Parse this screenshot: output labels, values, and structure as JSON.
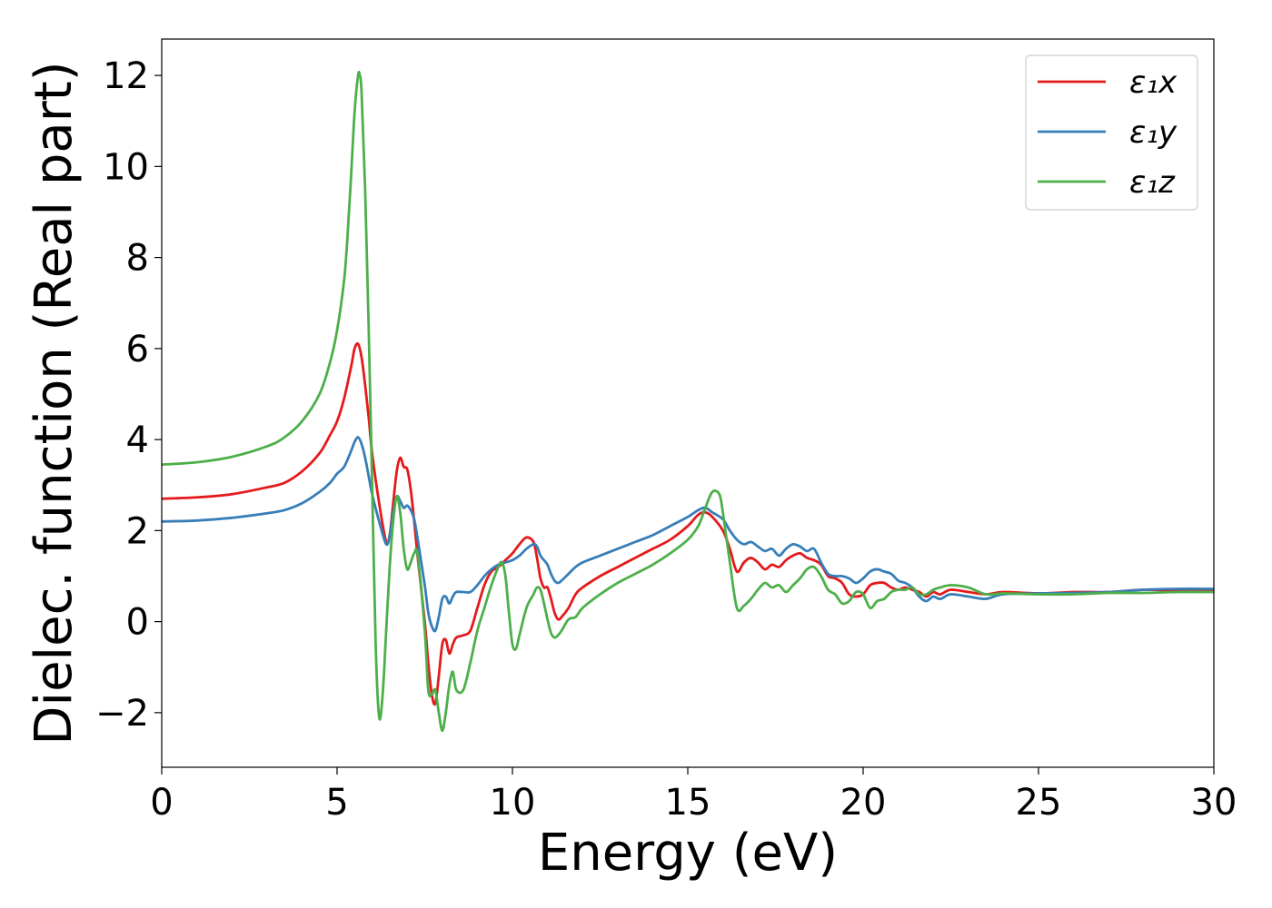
{
  "chart_data": {
    "type": "line",
    "title": "",
    "xlabel": "Energy (eV)",
    "ylabel": "Dielec. function (Real part)",
    "xlim": [
      0,
      30
    ],
    "ylim": [
      -3.2,
      12.8
    ],
    "xticks": [
      0,
      5,
      10,
      15,
      20,
      25,
      30
    ],
    "xtick_labels": [
      "0",
      "5",
      "10",
      "15",
      "20",
      "25",
      "30"
    ],
    "yticks": [
      -2,
      0,
      2,
      4,
      6,
      8,
      10,
      12
    ],
    "ytick_labels": [
      "−2",
      "0",
      "2",
      "4",
      "6",
      "8",
      "10",
      "12"
    ],
    "grid": false,
    "legend_position": "top-right",
    "series": [
      {
        "name": "ε₁x",
        "color": "#e41a1c",
        "x": [
          0,
          1,
          2,
          3,
          3.5,
          4,
          4.5,
          4.8,
          5.0,
          5.2,
          5.4,
          5.5,
          5.6,
          5.7,
          5.8,
          5.9,
          6.0,
          6.2,
          6.4,
          6.5,
          6.6,
          6.7,
          6.8,
          6.9,
          7.0,
          7.1,
          7.2,
          7.3,
          7.5,
          7.6,
          7.7,
          7.8,
          7.9,
          8.0,
          8.1,
          8.2,
          8.3,
          8.4,
          8.6,
          8.8,
          9.0,
          9.2,
          9.4,
          9.6,
          9.8,
          10.0,
          10.2,
          10.4,
          10.6,
          10.7,
          10.8,
          10.9,
          11.0,
          11.1,
          11.2,
          11.3,
          11.4,
          11.6,
          11.8,
          12.0,
          12.5,
          13.0,
          13.5,
          14.0,
          14.5,
          15.0,
          15.3,
          15.5,
          15.7,
          16.0,
          16.2,
          16.4,
          16.6,
          16.8,
          17.0,
          17.2,
          17.4,
          17.6,
          17.8,
          18.0,
          18.2,
          18.4,
          18.6,
          18.8,
          19.0,
          19.2,
          19.4,
          19.6,
          19.8,
          20.0,
          20.2,
          20.4,
          20.6,
          20.8,
          21.0,
          21.2,
          21.4,
          21.6,
          21.8,
          22.0,
          22.2,
          22.5,
          23.0,
          23.5,
          24.0,
          25.0,
          26.0,
          27.0,
          28.0,
          29.0,
          30.0
        ],
        "y": [
          2.7,
          2.73,
          2.8,
          2.95,
          3.05,
          3.3,
          3.7,
          4.1,
          4.4,
          4.9,
          5.6,
          6.0,
          6.1,
          5.8,
          5.2,
          4.5,
          3.7,
          2.6,
          1.75,
          1.9,
          2.6,
          3.3,
          3.6,
          3.4,
          3.35,
          2.9,
          2.2,
          1.4,
          0.0,
          -0.9,
          -1.6,
          -1.8,
          -1.2,
          -0.5,
          -0.4,
          -0.7,
          -0.5,
          -0.35,
          -0.3,
          -0.2,
          0.3,
          0.8,
          1.1,
          1.2,
          1.35,
          1.5,
          1.7,
          1.85,
          1.75,
          1.4,
          0.95,
          0.75,
          0.75,
          0.5,
          0.2,
          0.05,
          0.1,
          0.3,
          0.6,
          0.75,
          1.0,
          1.2,
          1.4,
          1.6,
          1.8,
          2.1,
          2.35,
          2.4,
          2.3,
          2.0,
          1.6,
          1.1,
          1.3,
          1.4,
          1.3,
          1.15,
          1.25,
          1.2,
          1.35,
          1.45,
          1.5,
          1.4,
          1.35,
          1.25,
          1.0,
          0.95,
          0.85,
          0.6,
          0.55,
          0.6,
          0.8,
          0.85,
          0.85,
          0.75,
          0.7,
          0.75,
          0.7,
          0.65,
          0.55,
          0.65,
          0.6,
          0.7,
          0.65,
          0.6,
          0.65,
          0.62,
          0.65,
          0.65,
          0.7,
          0.68,
          0.7
        ]
      },
      {
        "name": "ε₁y",
        "color": "#377eb8",
        "x": [
          0,
          1,
          2,
          3,
          3.5,
          4,
          4.5,
          4.8,
          5.0,
          5.2,
          5.4,
          5.5,
          5.6,
          5.7,
          5.8,
          5.9,
          6.0,
          6.2,
          6.4,
          6.5,
          6.6,
          6.7,
          6.8,
          6.9,
          7.0,
          7.1,
          7.2,
          7.3,
          7.5,
          7.6,
          7.7,
          7.8,
          7.9,
          8.0,
          8.1,
          8.2,
          8.3,
          8.4,
          8.6,
          8.8,
          9.0,
          9.2,
          9.4,
          9.6,
          9.8,
          10.0,
          10.2,
          10.4,
          10.6,
          10.7,
          10.8,
          10.9,
          11.0,
          11.1,
          11.2,
          11.3,
          11.4,
          11.6,
          11.8,
          12.0,
          12.5,
          13.0,
          13.5,
          14.0,
          14.5,
          15.0,
          15.3,
          15.5,
          15.7,
          16.0,
          16.2,
          16.4,
          16.6,
          16.8,
          17.0,
          17.2,
          17.4,
          17.6,
          17.8,
          18.0,
          18.2,
          18.4,
          18.6,
          18.8,
          19.0,
          19.2,
          19.4,
          19.6,
          19.8,
          20.0,
          20.2,
          20.4,
          20.6,
          20.8,
          21.0,
          21.2,
          21.4,
          21.6,
          21.8,
          22.0,
          22.2,
          22.5,
          23.0,
          23.5,
          24.0,
          25.0,
          26.0,
          27.0,
          28.0,
          29.0,
          30.0
        ],
        "y": [
          2.2,
          2.22,
          2.28,
          2.38,
          2.45,
          2.6,
          2.85,
          3.05,
          3.25,
          3.4,
          3.75,
          3.95,
          4.05,
          3.9,
          3.6,
          3.2,
          2.8,
          2.2,
          1.7,
          1.9,
          2.4,
          2.75,
          2.65,
          2.5,
          2.55,
          2.45,
          2.25,
          1.8,
          0.8,
          0.2,
          -0.1,
          -0.2,
          0.1,
          0.5,
          0.55,
          0.4,
          0.55,
          0.65,
          0.65,
          0.65,
          0.8,
          1.0,
          1.15,
          1.25,
          1.3,
          1.35,
          1.45,
          1.6,
          1.7,
          1.65,
          1.45,
          1.35,
          1.25,
          1.05,
          0.9,
          0.85,
          0.9,
          1.05,
          1.2,
          1.3,
          1.45,
          1.6,
          1.75,
          1.9,
          2.1,
          2.3,
          2.45,
          2.5,
          2.4,
          2.25,
          2.0,
          1.8,
          1.7,
          1.75,
          1.65,
          1.55,
          1.6,
          1.45,
          1.6,
          1.7,
          1.65,
          1.55,
          1.6,
          1.3,
          1.05,
          1.0,
          1.0,
          0.95,
          0.85,
          0.95,
          1.1,
          1.15,
          1.1,
          1.05,
          0.9,
          0.85,
          0.75,
          0.55,
          0.45,
          0.55,
          0.5,
          0.6,
          0.55,
          0.5,
          0.6,
          0.62,
          0.63,
          0.65,
          0.7,
          0.72,
          0.72
        ]
      },
      {
        "name": "ε₁z",
        "color": "#4daf4a",
        "x": [
          0,
          1,
          2,
          3,
          3.5,
          4,
          4.5,
          4.8,
          5.0,
          5.2,
          5.3,
          5.4,
          5.5,
          5.6,
          5.65,
          5.7,
          5.8,
          5.9,
          6.0,
          6.1,
          6.2,
          6.3,
          6.4,
          6.5,
          6.6,
          6.7,
          6.8,
          6.9,
          7.0,
          7.1,
          7.2,
          7.3,
          7.5,
          7.6,
          7.7,
          7.8,
          7.9,
          8.0,
          8.1,
          8.2,
          8.3,
          8.4,
          8.6,
          8.8,
          9.0,
          9.2,
          9.4,
          9.6,
          9.7,
          9.8,
          9.9,
          10.0,
          10.1,
          10.2,
          10.4,
          10.6,
          10.7,
          10.8,
          10.9,
          11.0,
          11.1,
          11.2,
          11.3,
          11.4,
          11.6,
          11.8,
          12.0,
          12.5,
          13.0,
          13.5,
          14.0,
          14.5,
          15.0,
          15.3,
          15.5,
          15.7,
          15.9,
          16.0,
          16.2,
          16.4,
          16.6,
          16.8,
          17.0,
          17.2,
          17.4,
          17.6,
          17.8,
          18.0,
          18.2,
          18.4,
          18.6,
          18.8,
          19.0,
          19.2,
          19.4,
          19.6,
          19.8,
          20.0,
          20.2,
          20.4,
          20.6,
          20.8,
          21.0,
          21.2,
          21.4,
          21.6,
          21.8,
          22.0,
          22.2,
          22.5,
          23.0,
          23.5,
          24.0,
          25.0,
          26.0,
          27.0,
          28.0,
          29.0,
          30.0
        ],
        "y": [
          3.45,
          3.5,
          3.62,
          3.85,
          4.05,
          4.4,
          5.0,
          5.7,
          6.4,
          7.5,
          8.5,
          9.8,
          11.2,
          12.0,
          12.0,
          11.6,
          9.5,
          6.5,
          3.0,
          -0.5,
          -2.1,
          -1.6,
          -0.2,
          1.2,
          2.2,
          2.75,
          2.4,
          1.6,
          1.15,
          1.3,
          1.5,
          1.45,
          -0.2,
          -1.5,
          -1.6,
          -1.5,
          -2.0,
          -2.4,
          -2.0,
          -1.4,
          -1.1,
          -1.5,
          -1.5,
          -0.9,
          -0.2,
          0.3,
          0.8,
          1.2,
          1.3,
          1.0,
          0.2,
          -0.5,
          -0.6,
          -0.3,
          0.3,
          0.6,
          0.75,
          0.7,
          0.4,
          0.05,
          -0.25,
          -0.35,
          -0.3,
          -0.2,
          0.05,
          0.1,
          0.3,
          0.6,
          0.85,
          1.05,
          1.25,
          1.5,
          1.8,
          2.1,
          2.5,
          2.85,
          2.8,
          2.4,
          1.3,
          0.3,
          0.35,
          0.5,
          0.7,
          0.85,
          0.75,
          0.8,
          0.65,
          0.8,
          0.95,
          1.15,
          1.2,
          1.0,
          0.7,
          0.6,
          0.4,
          0.45,
          0.65,
          0.6,
          0.3,
          0.45,
          0.5,
          0.65,
          0.7,
          0.7,
          0.75,
          0.6,
          0.6,
          0.7,
          0.75,
          0.8,
          0.75,
          0.6,
          0.62,
          0.6,
          0.6,
          0.63,
          0.63,
          0.65,
          0.65
        ]
      }
    ]
  }
}
